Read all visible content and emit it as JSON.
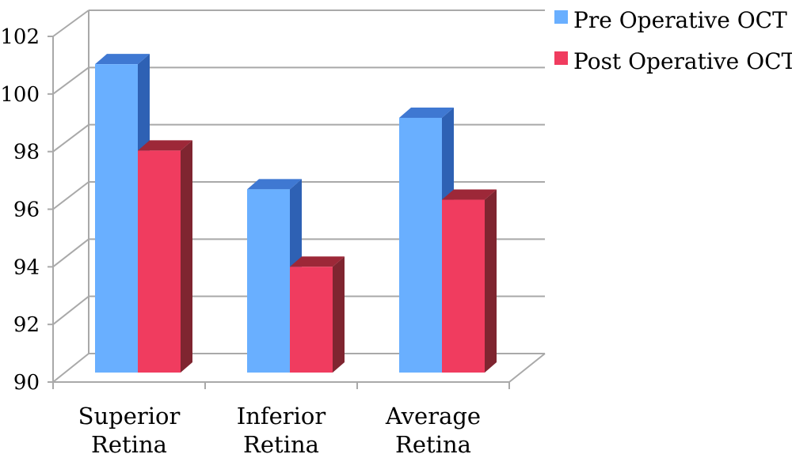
{
  "chart_data": {
    "type": "bar",
    "categories": [
      [
        "Superior",
        "Retina"
      ],
      [
        "Inferior",
        "Retina"
      ],
      [
        "Average",
        "Retina"
      ]
    ],
    "series": [
      {
        "name": "Pre Operative OCT",
        "values": [
          100.35,
          96.15,
          98.55
        ],
        "color": "#69afff",
        "side_color": "#2e61b4",
        "top_color": "#3f78d2"
      },
      {
        "name": "Post Operative OCT",
        "values": [
          97.45,
          93.55,
          95.8
        ],
        "color": "#f03c5f",
        "side_color": "#7f2530",
        "top_color": "#9d2838"
      }
    ],
    "ylim": [
      90,
      102
    ],
    "yticks": [
      "90",
      "92",
      "94",
      "96",
      "98",
      "100",
      "102"
    ],
    "grid": true,
    "legend": "top-right",
    "title": "",
    "xlabel": "",
    "ylabel": ""
  }
}
